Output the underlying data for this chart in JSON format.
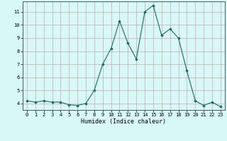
{
  "x": [
    0,
    1,
    2,
    3,
    4,
    5,
    6,
    7,
    8,
    9,
    10,
    11,
    12,
    13,
    14,
    15,
    16,
    17,
    18,
    19,
    20,
    21,
    22,
    23
  ],
  "y": [
    4.2,
    4.1,
    4.2,
    4.1,
    4.1,
    3.9,
    3.85,
    4.0,
    5.0,
    7.0,
    8.2,
    10.3,
    8.6,
    7.4,
    11.0,
    11.5,
    9.2,
    9.7,
    9.0,
    6.5,
    4.2,
    3.85,
    4.1,
    3.75
  ],
  "xlabel": "Humidex (Indice chaleur)",
  "xlim": [
    -0.5,
    23.5
  ],
  "ylim": [
    3.5,
    11.8
  ],
  "yticks": [
    4,
    5,
    6,
    7,
    8,
    9,
    10,
    11
  ],
  "xticks": [
    0,
    1,
    2,
    3,
    4,
    5,
    6,
    7,
    8,
    9,
    10,
    11,
    12,
    13,
    14,
    15,
    16,
    17,
    18,
    19,
    20,
    21,
    22,
    23
  ],
  "line_color": "#1a6b5e",
  "marker": "D",
  "marker_size": 1.8,
  "bg_color": "#d8f8f8",
  "grid_major_color": "#c8a8a8",
  "grid_minor_color": "#c8a8a8",
  "axis_fontsize": 5.5,
  "tick_fontsize": 5.0,
  "xlabel_fontsize": 6.0
}
